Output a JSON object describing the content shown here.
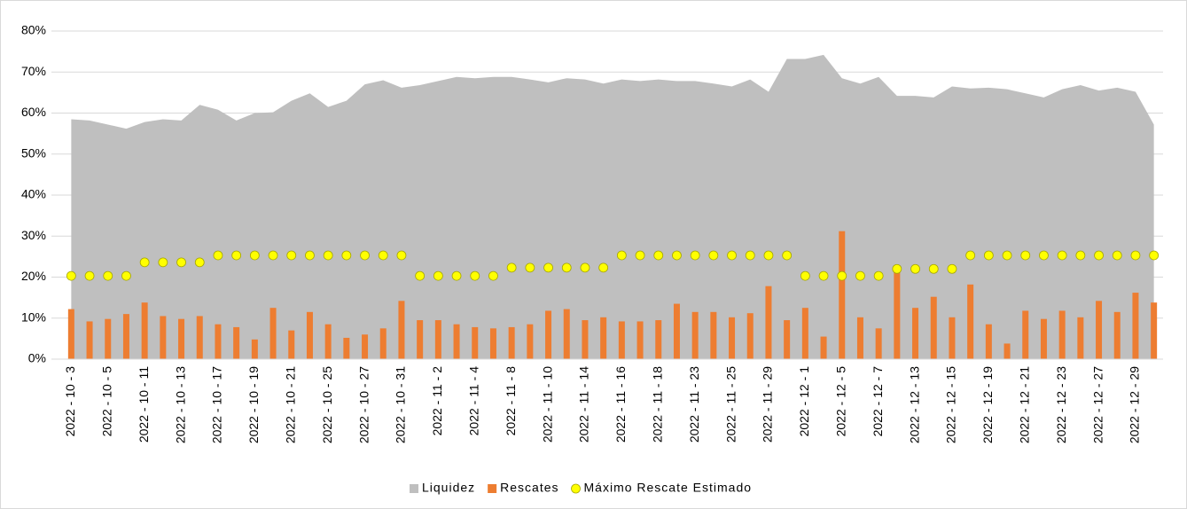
{
  "chart_data": {
    "type": "combo",
    "categories": [
      "2022 - 10 - 3",
      null,
      "2022 - 10 - 5",
      null,
      "2022 - 10 - 11",
      null,
      "2022 - 10 - 13",
      null,
      "2022 - 10 - 17",
      null,
      "2022 - 10 - 19",
      null,
      "2022 - 10 - 21",
      null,
      "2022 - 10 - 25",
      null,
      "2022 - 10 - 27",
      null,
      "2022 - 10 - 31",
      null,
      "2022 - 11 - 2",
      null,
      "2022 - 11 - 4",
      null,
      "2022 - 11 - 8",
      null,
      "2022 - 11 - 10",
      null,
      "2022 - 11 - 14",
      null,
      "2022 - 11 - 16",
      null,
      "2022 - 11 - 18",
      null,
      "2022 - 11 - 23",
      null,
      "2022 - 11 - 25",
      null,
      "2022 - 11 - 29",
      null,
      "2022 - 12 - 1",
      null,
      "2022 - 12 - 5",
      null,
      "2022 - 12 - 7",
      null,
      "2022 - 12 - 13",
      null,
      "2022 - 12 - 15",
      null,
      "2022 - 12 - 19",
      null,
      "2022 - 12 - 21",
      null,
      "2022 - 12 - 23",
      null,
      "2022 - 12 - 27",
      null,
      "2022 - 12 - 29",
      null
    ],
    "series": [
      {
        "name": "Liquidez",
        "kind": "area",
        "color": "#bfbfbf",
        "values": [
          58.5,
          58.2,
          57.2,
          56.2,
          57.8,
          58.5,
          58.2,
          62.0,
          60.8,
          58.2,
          60.0,
          60.2,
          63.0,
          64.8,
          61.5,
          63.0,
          67.0,
          68.0,
          66.2,
          66.8,
          67.8,
          68.8,
          68.5,
          68.8,
          68.8,
          68.2,
          67.5,
          68.5,
          68.2,
          67.2,
          68.2,
          67.8,
          68.2,
          67.8,
          67.8,
          67.2,
          66.5,
          68.2,
          65.2,
          73.2,
          73.2,
          74.2,
          68.5,
          67.2,
          68.8,
          64.2,
          64.2,
          63.8,
          66.5,
          66.0,
          66.2,
          65.8,
          64.8,
          63.8,
          65.8,
          66.8,
          65.5,
          66.2,
          65.2,
          57.2
        ]
      },
      {
        "name": "Rescates",
        "kind": "bar",
        "color": "#ed7d31",
        "values": [
          12.2,
          9.2,
          9.8,
          11.0,
          13.8,
          10.5,
          9.8,
          10.5,
          8.5,
          7.8,
          4.8,
          12.5,
          7.0,
          11.5,
          8.5,
          5.2,
          6.0,
          7.5,
          14.2,
          9.5,
          9.5,
          8.5,
          7.8,
          7.5,
          7.8,
          8.5,
          11.8,
          12.2,
          9.5,
          10.2,
          9.2,
          9.2,
          9.5,
          13.5,
          11.5,
          11.5,
          10.2,
          11.2,
          17.8,
          9.5,
          12.5,
          5.5,
          31.2,
          10.2,
          7.5,
          21.5,
          12.5,
          15.2,
          10.2,
          18.2,
          8.5,
          3.8,
          11.8,
          9.8,
          11.8,
          10.2,
          14.2,
          11.5,
          16.2,
          13.8
        ]
      },
      {
        "name": "Máximo Rescate Estimado",
        "kind": "dot",
        "color": "#ffff00",
        "values": [
          20.3,
          20.3,
          20.3,
          20.3,
          23.6,
          23.6,
          23.6,
          23.6,
          25.3,
          25.3,
          25.3,
          25.3,
          25.3,
          25.3,
          25.3,
          25.3,
          25.3,
          25.3,
          25.3,
          20.3,
          20.3,
          20.3,
          20.3,
          20.3,
          22.3,
          22.3,
          22.3,
          22.3,
          22.3,
          22.3,
          25.3,
          25.3,
          25.3,
          25.3,
          25.3,
          25.3,
          25.3,
          25.3,
          25.3,
          25.3,
          20.3,
          20.3,
          20.3,
          20.3,
          20.3,
          22.0,
          22.0,
          22.0,
          22.0,
          25.3,
          25.3,
          25.3,
          25.3,
          25.3,
          25.3,
          25.3,
          25.3,
          25.3,
          25.3,
          25.3
        ]
      }
    ],
    "ylim": [
      0,
      80
    ],
    "yticks": [
      {
        "value": 0,
        "label": "0%"
      },
      {
        "value": 10,
        "label": "10%"
      },
      {
        "value": 20,
        "label": "20%"
      },
      {
        "value": 30,
        "label": "30%"
      },
      {
        "value": 40,
        "label": "40%"
      },
      {
        "value": 50,
        "label": "50%"
      },
      {
        "value": 60,
        "label": "60%"
      },
      {
        "value": 70,
        "label": "70%"
      },
      {
        "value": 80,
        "label": "80%"
      }
    ],
    "grid": true,
    "legend": "bottom"
  }
}
